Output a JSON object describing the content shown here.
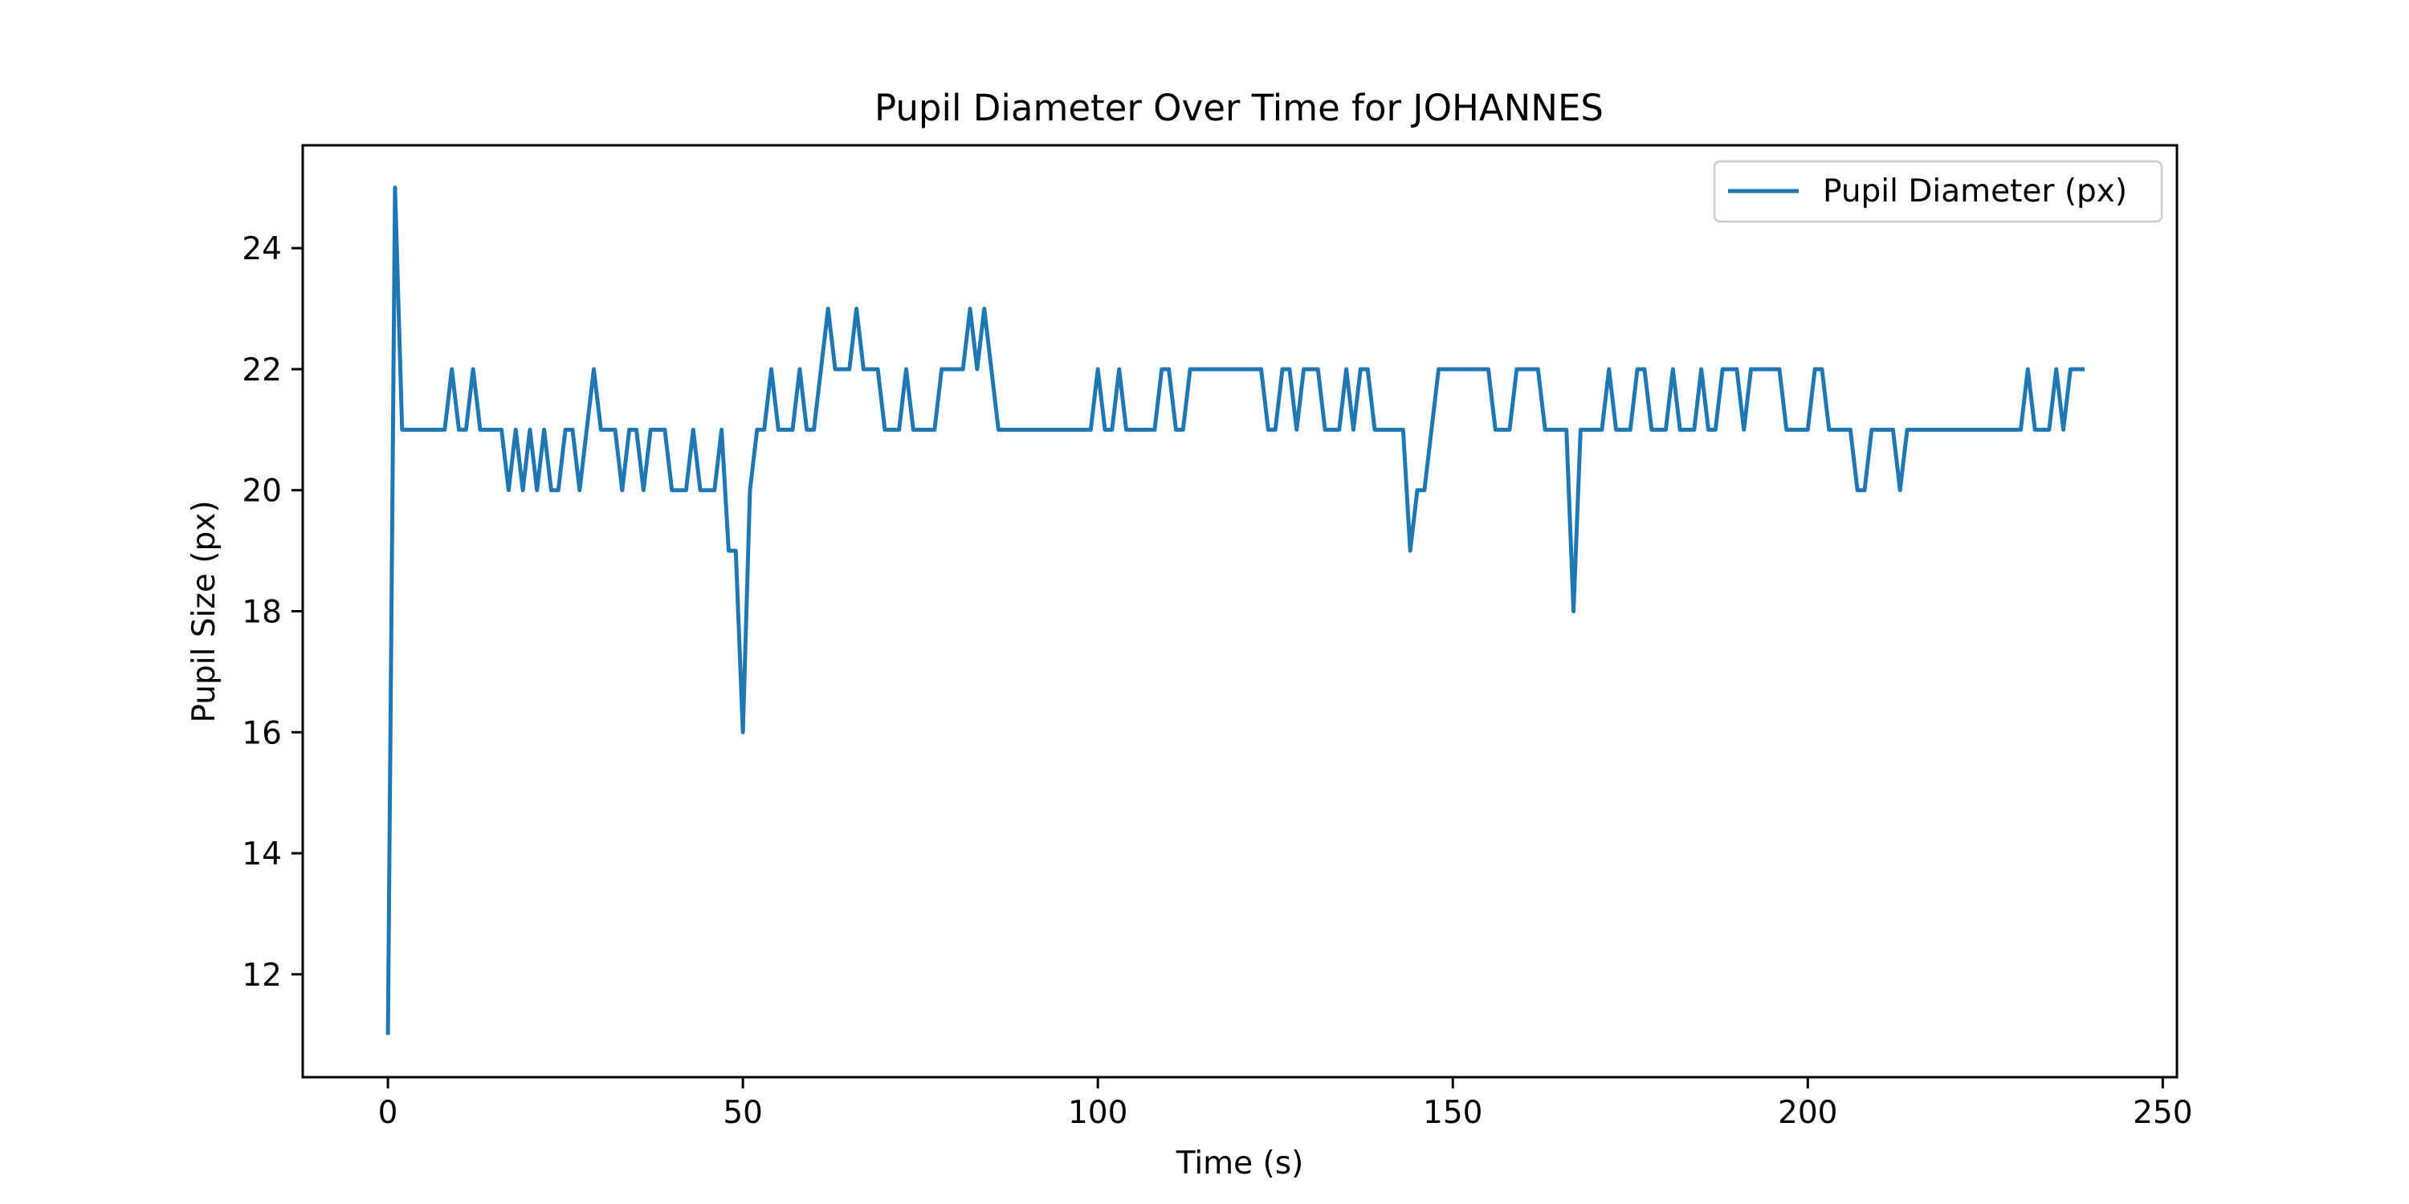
{
  "chart_data": {
    "type": "line",
    "title": "Pupil Diameter Over Time for JOHANNES",
    "xlabel": "Time (s)",
    "ylabel": "Pupil Size (px)",
    "xlim": [
      -12,
      252
    ],
    "ylim": [
      10.3,
      25.7
    ],
    "xticks": [
      0,
      50,
      100,
      150,
      200,
      250
    ],
    "yticks": [
      12,
      14,
      16,
      18,
      20,
      22,
      24
    ],
    "grid": false,
    "legend": {
      "placement": "top-right"
    },
    "series": [
      {
        "name": "Pupil Diameter (px)",
        "color": "#1f77b4",
        "x": [
          0,
          1,
          2,
          3,
          4,
          5,
          6,
          7,
          8,
          9,
          10,
          11,
          12,
          13,
          14,
          15,
          16,
          17,
          18,
          19,
          20,
          21,
          22,
          23,
          24,
          25,
          26,
          27,
          28,
          29,
          30,
          31,
          32,
          33,
          34,
          35,
          36,
          37,
          38,
          39,
          40,
          41,
          42,
          43,
          44,
          45,
          46,
          47,
          48,
          49,
          50,
          51,
          52,
          53,
          54,
          55,
          56,
          57,
          58,
          59,
          60,
          61,
          62,
          63,
          64,
          65,
          66,
          67,
          68,
          69,
          70,
          71,
          72,
          73,
          74,
          75,
          76,
          77,
          78,
          79,
          80,
          81,
          82,
          83,
          84,
          85,
          86,
          87,
          88,
          89,
          90,
          91,
          92,
          93,
          94,
          95,
          96,
          97,
          98,
          99,
          100,
          101,
          102,
          103,
          104,
          105,
          106,
          107,
          108,
          109,
          110,
          111,
          112,
          113,
          114,
          115,
          116,
          117,
          118,
          119,
          120,
          121,
          122,
          123,
          124,
          125,
          126,
          127,
          128,
          129,
          130,
          131,
          132,
          133,
          134,
          135,
          136,
          137,
          138,
          139,
          140,
          141,
          142,
          143,
          144,
          145,
          146,
          147,
          148,
          149,
          150,
          151,
          152,
          153,
          154,
          155,
          156,
          157,
          158,
          159,
          160,
          161,
          162,
          163,
          164,
          165,
          166,
          167,
          168,
          169,
          170,
          171,
          172,
          173,
          174,
          175,
          176,
          177,
          178,
          179,
          180,
          181,
          182,
          183,
          184,
          185,
          186,
          187,
          188,
          189,
          190,
          191,
          192,
          193,
          194,
          195,
          196,
          197,
          198,
          199,
          200,
          201,
          202,
          203,
          204,
          205,
          206,
          207,
          208,
          209,
          210,
          211,
          212,
          213,
          214,
          215,
          216,
          217,
          218,
          219,
          220,
          221,
          222,
          223,
          224,
          225,
          226,
          227,
          228,
          229,
          230,
          231,
          232,
          233,
          234,
          235,
          236,
          237,
          238,
          239
        ],
        "y": [
          11,
          25,
          21,
          21,
          21,
          21,
          21,
          21,
          21,
          22,
          21,
          21,
          22,
          21,
          21,
          21,
          21,
          20,
          21,
          20,
          21,
          20,
          21,
          20,
          20,
          21,
          21,
          20,
          21,
          22,
          21,
          21,
          21,
          20,
          21,
          21,
          20,
          21,
          21,
          21,
          20,
          20,
          20,
          21,
          20,
          20,
          20,
          21,
          19,
          19,
          16,
          20,
          21,
          21,
          22,
          21,
          21,
          21,
          22,
          21,
          21,
          22,
          23,
          22,
          22,
          22,
          23,
          22,
          22,
          22,
          21,
          21,
          21,
          22,
          21,
          21,
          21,
          21,
          22,
          22,
          22,
          22,
          23,
          22,
          23,
          22,
          21,
          21,
          21,
          21,
          21,
          21,
          21,
          21,
          21,
          21,
          21,
          21,
          21,
          21,
          22,
          21,
          21,
          22,
          21,
          21,
          21,
          21,
          21,
          22,
          22,
          21,
          21,
          22,
          22,
          22,
          22,
          22,
          22,
          22,
          22,
          22,
          22,
          22,
          21,
          21,
          22,
          22,
          21,
          22,
          22,
          22,
          21,
          21,
          21,
          22,
          21,
          22,
          22,
          21,
          21,
          21,
          21,
          21,
          19,
          20,
          20,
          21,
          22,
          22,
          22,
          22,
          22,
          22,
          22,
          22,
          21,
          21,
          21,
          22,
          22,
          22,
          22,
          21,
          21,
          21,
          21,
          18,
          21,
          21,
          21,
          21,
          22,
          21,
          21,
          21,
          22,
          22,
          21,
          21,
          21,
          22,
          21,
          21,
          21,
          22,
          21,
          21,
          22,
          22,
          22,
          21,
          22,
          22,
          22,
          22,
          22,
          21,
          21,
          21,
          21,
          22,
          22,
          21,
          21,
          21,
          21,
          20,
          20,
          21,
          21,
          21,
          21,
          20,
          21,
          21,
          21,
          21,
          21,
          21,
          21,
          21,
          21,
          21,
          21,
          21,
          21,
          21,
          21,
          21,
          21,
          22,
          21,
          21,
          21,
          22,
          21,
          22,
          22,
          22
        ]
      }
    ]
  }
}
